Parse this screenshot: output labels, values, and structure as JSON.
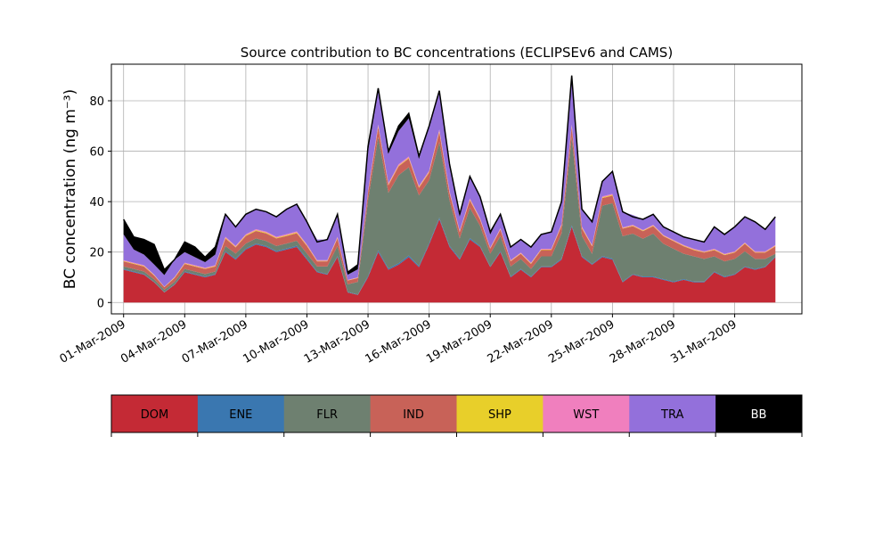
{
  "chart_data": {
    "type": "area",
    "title": "Source contribution to BC concentrations (ECLIPSEv6 and CAMS)",
    "ylabel": "BC concentration (ng m⁻³)",
    "xlabel": "",
    "ylim": [
      -4.5,
      94.5
    ],
    "xlim": [
      -0.6,
      33.3
    ],
    "yticks": [
      0,
      20,
      40,
      60,
      80
    ],
    "xticks": [
      {
        "day": 0,
        "label": "01-Mar-2009"
      },
      {
        "day": 3,
        "label": "04-Mar-2009"
      },
      {
        "day": 6,
        "label": "07-Mar-2009"
      },
      {
        "day": 9,
        "label": "10-Mar-2009"
      },
      {
        "day": 12,
        "label": "13-Mar-2009"
      },
      {
        "day": 15,
        "label": "16-Mar-2009"
      },
      {
        "day": 18,
        "label": "19-Mar-2009"
      },
      {
        "day": 21,
        "label": "22-Mar-2009"
      },
      {
        "day": 24,
        "label": "25-Mar-2009"
      },
      {
        "day": 27,
        "label": "28-Mar-2009"
      },
      {
        "day": 30,
        "label": "31-Mar-2009"
      }
    ],
    "grid": true,
    "stacking": "cumulative",
    "days": [
      0,
      0.5,
      1,
      1.5,
      2,
      2.5,
      3,
      3.5,
      4,
      4.5,
      5,
      5.5,
      6,
      6.5,
      7,
      7.5,
      8,
      8.5,
      9,
      9.5,
      10,
      10.5,
      11,
      11.5,
      12,
      12.5,
      13,
      13.5,
      14,
      14.5,
      15,
      15.5,
      16,
      16.5,
      17,
      17.5,
      18,
      18.5,
      19,
      19.5,
      20,
      20.5,
      21,
      21.5,
      22,
      22.5,
      23,
      23.5,
      24,
      24.5,
      25,
      25.5,
      26,
      26.5,
      27,
      27.5,
      28,
      28.5,
      29,
      29.5,
      30,
      30.5,
      31,
      31.5,
      32
    ],
    "totals": [
      33,
      26,
      25,
      23,
      13,
      17,
      24,
      22,
      18,
      22,
      35,
      30,
      35,
      37,
      36,
      34,
      37,
      39,
      32,
      24,
      25,
      35,
      12,
      15,
      62,
      85,
      60,
      70,
      75,
      58,
      70,
      84,
      55,
      35,
      50,
      42,
      28,
      35,
      22,
      25,
      22,
      27,
      28,
      40,
      90,
      37,
      32,
      48,
      52,
      36,
      34,
      33,
      35,
      30,
      28,
      26,
      25,
      24,
      30,
      27,
      30,
      34,
      32,
      29,
      34
    ],
    "series": [
      {
        "name": "DOM",
        "color": "#c42a35",
        "values": [
          13,
          12,
          11,
          8,
          4,
          7,
          12,
          11,
          10,
          11,
          20,
          17,
          21,
          23,
          22,
          20,
          21,
          22,
          17,
          12,
          11,
          18,
          4,
          3,
          10,
          20,
          13,
          15,
          18,
          14,
          23,
          33,
          22,
          17,
          25,
          22,
          14,
          20,
          10,
          13,
          10,
          14,
          14,
          17,
          30,
          18,
          15,
          18,
          17,
          8,
          11,
          10,
          10,
          9,
          8,
          9,
          8,
          8,
          12,
          10,
          11,
          14,
          13,
          14,
          18
        ]
      },
      {
        "name": "ENE",
        "color": "#3a77b0",
        "values": [
          0.3,
          0.3,
          0.3,
          0.2,
          0.1,
          0.2,
          0.3,
          0.3,
          0.3,
          0.3,
          0.4,
          0.4,
          0.4,
          0.4,
          0.4,
          0.4,
          0.4,
          0.5,
          0.4,
          0.3,
          0.3,
          0.4,
          0.2,
          0.2,
          0.5,
          0.6,
          0.5,
          0.5,
          0.6,
          0.5,
          0.5,
          0.6,
          0.5,
          0.4,
          0.5,
          0.4,
          0.3,
          0.4,
          0.3,
          0.3,
          0.3,
          0.3,
          0.3,
          0.4,
          0.6,
          0.4,
          0.3,
          0.4,
          0.4,
          0.3,
          0.3,
          0.3,
          0.3,
          0.3,
          0.3,
          0.3,
          0.3,
          0.3,
          0.3,
          0.3,
          0.3,
          0.3,
          0.3,
          0.3,
          0.3
        ]
      },
      {
        "name": "FLR",
        "color": "#6e8070",
        "values": [
          1,
          1,
          1,
          1,
          1,
          1,
          1,
          1,
          1,
          1,
          2,
          2,
          2,
          2,
          2,
          2,
          2,
          2,
          2,
          2,
          3,
          4,
          3,
          5,
          30,
          45,
          30,
          35,
          35,
          28,
          25,
          30,
          18,
          8,
          12,
          8,
          5,
          6,
          4,
          4,
          3,
          4,
          4,
          10,
          35,
          8,
          4,
          20,
          22,
          18,
          16,
          15,
          17,
          14,
          13,
          10,
          10,
          9,
          6,
          6,
          6,
          6,
          4,
          3,
          1
        ]
      },
      {
        "name": "IND",
        "color": "#c86258",
        "values": [
          2,
          2,
          2,
          1.5,
          1,
          1.5,
          2,
          2,
          2,
          2,
          3,
          2.5,
          3,
          3,
          3,
          3,
          3,
          3,
          3,
          2,
          2,
          3,
          1.5,
          1.5,
          3,
          4,
          3,
          3.5,
          3.5,
          3,
          3,
          4,
          3,
          2.5,
          3,
          2.5,
          2,
          2.5,
          2,
          2,
          2,
          2.5,
          2.5,
          3,
          4,
          3,
          3,
          3,
          3,
          3,
          3,
          3,
          3,
          3,
          3,
          3,
          2.5,
          2.5,
          2.5,
          2.5,
          2.5,
          3,
          2.5,
          2.5,
          3
        ]
      },
      {
        "name": "SHP",
        "color": "#e8cf2a",
        "values": [
          0.2,
          0.2,
          0.2,
          0.2,
          0.1,
          0.2,
          0.2,
          0.2,
          0.2,
          0.2,
          0.3,
          0.2,
          0.3,
          0.3,
          0.3,
          0.3,
          0.3,
          0.3,
          0.3,
          0.2,
          0.2,
          0.3,
          0.1,
          0.1,
          0.3,
          0.4,
          0.3,
          0.3,
          0.3,
          0.3,
          0.3,
          0.4,
          0.3,
          0.2,
          0.3,
          0.2,
          0.2,
          0.2,
          0.2,
          0.2,
          0.2,
          0.2,
          0.2,
          0.3,
          0.4,
          0.3,
          0.2,
          0.3,
          0.3,
          0.2,
          0.2,
          0.2,
          0.2,
          0.2,
          0.2,
          0.2,
          0.2,
          0.2,
          0.2,
          0.2,
          0.2,
          0.2,
          0.2,
          0.2,
          0.2
        ]
      },
      {
        "name": "WST",
        "color": "#f07fbe",
        "values": [
          0.3,
          0.3,
          0.3,
          0.2,
          0.1,
          0.2,
          0.3,
          0.3,
          0.3,
          0.3,
          0.4,
          0.4,
          0.4,
          0.4,
          0.4,
          0.4,
          0.4,
          0.4,
          0.4,
          0.3,
          0.3,
          0.4,
          0.2,
          0.2,
          0.5,
          0.6,
          0.5,
          0.5,
          0.5,
          0.5,
          0.5,
          0.6,
          0.5,
          0.4,
          0.5,
          0.4,
          0.3,
          0.4,
          0.3,
          0.3,
          0.3,
          0.3,
          0.3,
          0.4,
          0.6,
          0.4,
          0.3,
          0.4,
          0.4,
          0.3,
          0.3,
          0.3,
          0.3,
          0.3,
          0.3,
          0.3,
          0.3,
          0.3,
          0.3,
          0.3,
          0.3,
          0.3,
          0.3,
          0.3,
          0.3
        ]
      },
      {
        "name": "TRA",
        "color": "#9370db",
        "values": [
          10.2,
          5.2,
          4.2,
          4,
          4.6,
          6.9,
          4.2,
          3.2,
          2.2,
          4.2,
          8.5,
          7.5,
          7.9,
          7.9,
          7.9,
          7.9,
          9.9,
          10.8,
          8.9,
          8.2,
          8.2,
          8.5,
          2,
          3.2,
          15.7,
          13.4,
          11.7,
          13.2,
          15.1,
          10.7,
          17.7,
          14.4,
          9.7,
          5.5,
          8.7,
          8.5,
          5.2,
          5.5,
          5.2,
          5.2,
          6.2,
          5.7,
          6.7,
          8.9,
          18.4,
          6.9,
          8.9,
          5.9,
          8.9,
          6.2,
          3.9,
          4.2,
          4.2,
          3.2,
          3.2,
          3.2,
          3.7,
          3.7,
          8.7,
          7.7,
          9.7,
          10.2,
          11.7,
          8.7,
          11.2
        ]
      },
      {
        "name": "BB",
        "color": "#000000",
        "values": [
          6,
          5,
          6,
          8,
          2,
          1,
          4,
          4,
          2,
          3,
          0,
          0,
          0,
          0,
          0,
          0,
          0,
          0,
          0,
          0,
          0,
          0,
          0,
          0,
          1,
          1,
          1,
          1,
          1,
          1,
          1,
          1,
          1,
          1,
          1,
          1,
          1,
          1,
          0,
          0,
          0,
          0,
          0,
          0,
          1,
          0,
          0,
          0,
          0,
          0,
          0,
          0,
          0,
          0,
          0,
          0,
          0,
          0,
          0,
          0,
          0,
          0,
          0,
          0,
          0
        ]
      }
    ]
  }
}
